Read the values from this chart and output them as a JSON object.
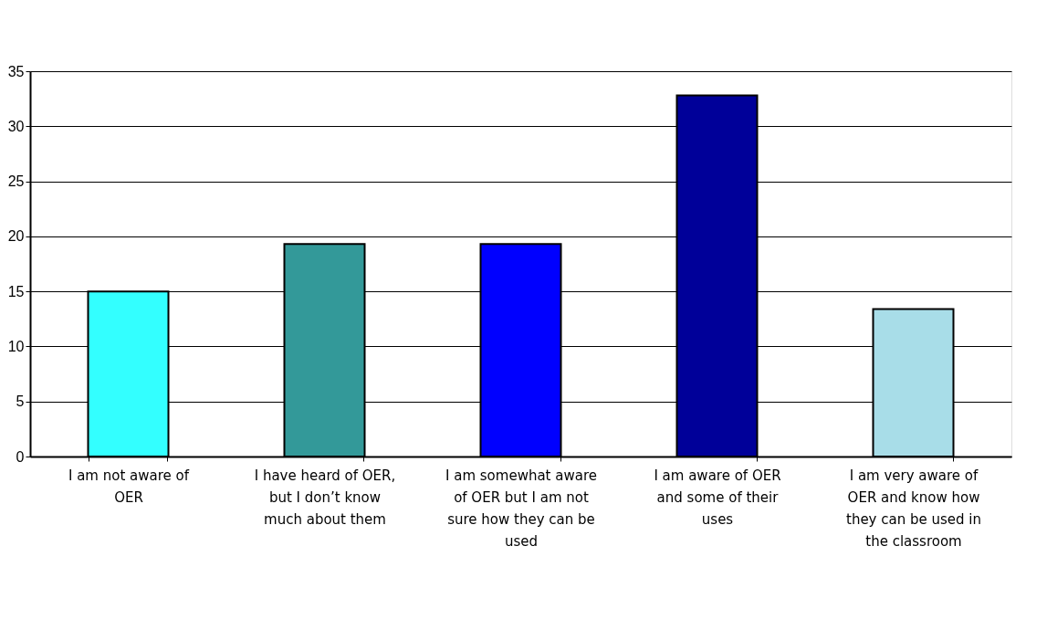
{
  "chart_data": {
    "type": "bar",
    "categories": [
      "I am not aware of OER",
      "I have heard of OER, but I don’t know much about them",
      "I am somewhat aware of OER but I am not sure how they can be used",
      "I am aware of OER and some of their uses",
      "I am very aware of OER and know how they can be used in the classroom"
    ],
    "values": [
      15.0,
      19.3,
      19.3,
      32.8,
      13.4
    ],
    "colors": [
      "#33ffff",
      "#339999",
      "#0000ff",
      "#000099",
      "#a8dde8"
    ],
    "ylim": [
      0,
      35
    ],
    "yticks": [
      0,
      5,
      10,
      15,
      20,
      25,
      30,
      35
    ],
    "grid": "y"
  }
}
